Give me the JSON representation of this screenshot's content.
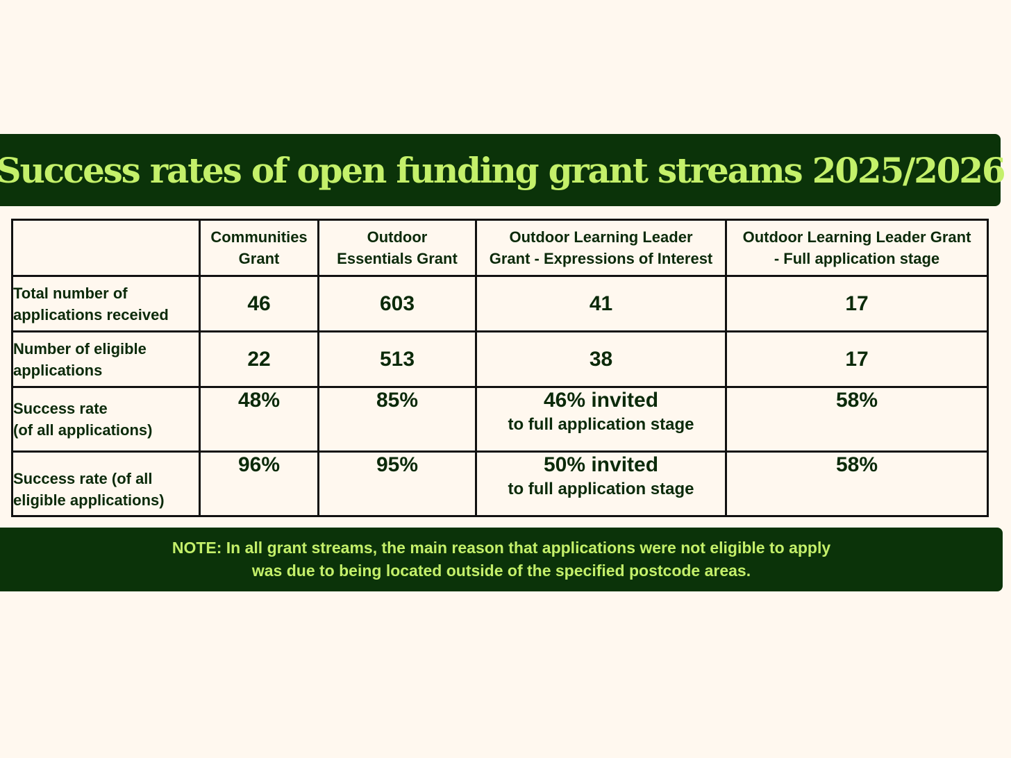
{
  "title": "Success rates of open funding grant streams 2025/2026",
  "table": {
    "columns": [
      [
        "Communities",
        "Grant"
      ],
      [
        "Outdoor",
        "Essentials Grant"
      ],
      [
        "Outdoor Learning Leader",
        "Grant - Expressions of Interest"
      ],
      [
        "Outdoor Learning Leader Grant",
        "- Full application stage"
      ]
    ],
    "rows": [
      {
        "label": [
          "Total number of",
          "applications received"
        ],
        "values": [
          [
            "46"
          ],
          [
            "603"
          ],
          [
            "41"
          ],
          [
            "17"
          ]
        ]
      },
      {
        "label": [
          "Number of eligible",
          "applications"
        ],
        "values": [
          [
            "22"
          ],
          [
            "513"
          ],
          [
            "38"
          ],
          [
            "17"
          ]
        ]
      },
      {
        "label": [
          "Success rate",
          "(of all applications)"
        ],
        "values": [
          [
            "48%"
          ],
          [
            "85%"
          ],
          [
            "46% invited",
            "to full application stage"
          ],
          [
            "58%"
          ]
        ]
      },
      {
        "label": [
          "Success rate (of all",
          "eligible applications)"
        ],
        "values": [
          [
            "96%"
          ],
          [
            "95%"
          ],
          [
            "50% invited",
            "to full application stage"
          ],
          [
            "58%"
          ]
        ]
      }
    ]
  },
  "note": [
    "NOTE: In all grant streams, the main reason that applications were not eligible to apply",
    "was due to being located outside of the specified postcode areas."
  ],
  "colors": {
    "background": "#fff8ef",
    "banner": "#0b3309",
    "accent": "#c4f06a",
    "text": "#0b2a0a"
  }
}
